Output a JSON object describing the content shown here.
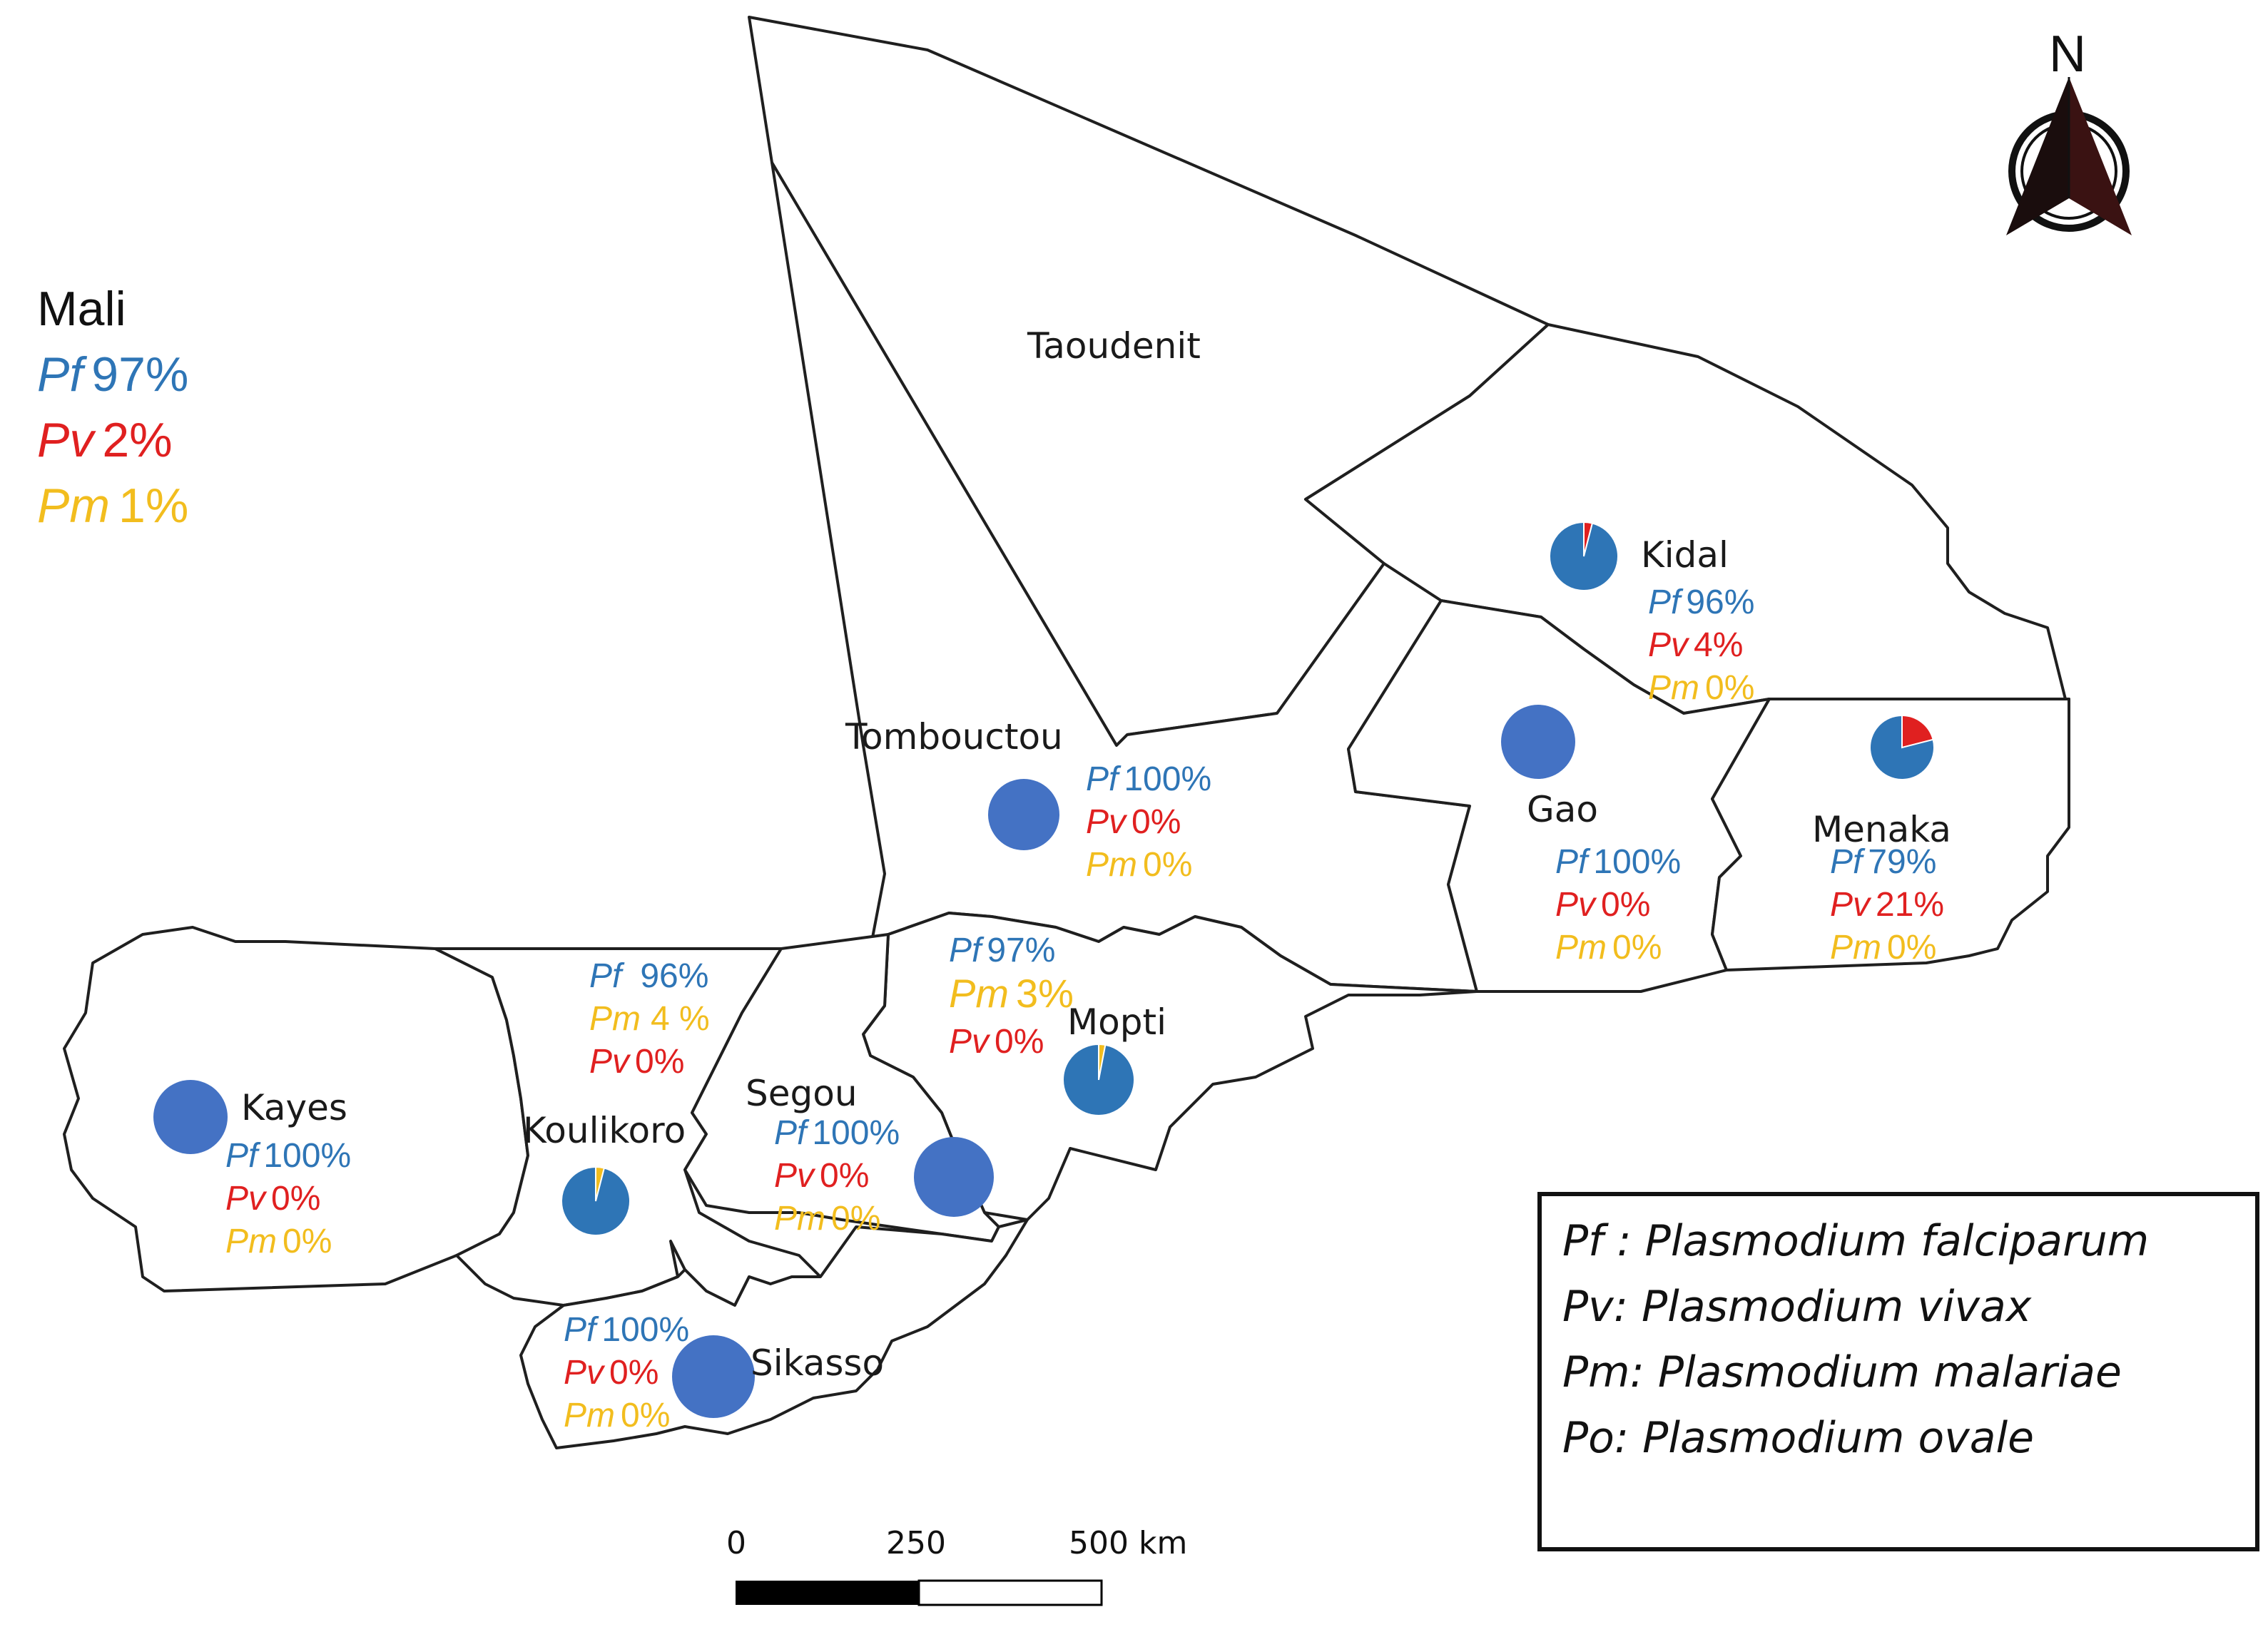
{
  "country": {
    "name": "Mali",
    "rows": [
      {
        "species": "Pf",
        "value": "97%",
        "color": "#2e75b6"
      },
      {
        "species": "Pv",
        "value": "2%",
        "color": "#e02020"
      },
      {
        "species": "Pm",
        "value": "1%",
        "color": "#f2bd1e"
      }
    ]
  },
  "regions": [
    {
      "name": "Taoudenit",
      "stats": []
    },
    {
      "name": "Kidal",
      "pie": {
        "Pf": 96,
        "Pv": 4,
        "Pm": 0
      },
      "stats": [
        {
          "species": "Pf",
          "value": "96%"
        },
        {
          "species": "Pv",
          "value": "4%"
        },
        {
          "species": "Pm",
          "value": "0%"
        }
      ]
    },
    {
      "name": "Tombouctou",
      "pie": {
        "Pf": 100,
        "Pv": 0,
        "Pm": 0
      },
      "stats": [
        {
          "species": "Pf",
          "value": "100%"
        },
        {
          "species": "Pv",
          "value": "0%"
        },
        {
          "species": "Pm",
          "value": "0%"
        }
      ]
    },
    {
      "name": "Gao",
      "pie": {
        "Pf": 100,
        "Pv": 0,
        "Pm": 0
      },
      "stats": [
        {
          "species": "Pf",
          "value": "100%"
        },
        {
          "species": "Pv",
          "value": "0%"
        },
        {
          "species": "Pm",
          "value": "0%"
        }
      ]
    },
    {
      "name": "Menaka",
      "pie": {
        "Pf": 79,
        "Pv": 21,
        "Pm": 0
      },
      "stats": [
        {
          "species": "Pf",
          "value": "79%"
        },
        {
          "species": "Pv",
          "value": "21%"
        },
        {
          "species": "Pm",
          "value": "0%"
        }
      ]
    },
    {
      "name": "Mopti",
      "pie": {
        "Pf": 97,
        "Pv": 0,
        "Pm": 3
      },
      "stats": [
        {
          "species": "Pf",
          "value": "97%"
        },
        {
          "species": "Pm",
          "value": "3%"
        },
        {
          "species": "Pv",
          "value": "0%"
        }
      ]
    },
    {
      "name": "Koulikoro",
      "pie": {
        "Pf": 96,
        "Pv": 0,
        "Pm": 4
      },
      "stats": [
        {
          "species": "Pf",
          "value": "96%"
        },
        {
          "species": "Pm",
          "value": "4 %"
        },
        {
          "species": "Pv",
          "value": "0%"
        }
      ]
    },
    {
      "name": "Kayes",
      "pie": {
        "Pf": 100,
        "Pv": 0,
        "Pm": 0
      },
      "stats": [
        {
          "species": "Pf",
          "value": "100%"
        },
        {
          "species": "Pv",
          "value": "0%"
        },
        {
          "species": "Pm",
          "value": "0%"
        }
      ]
    },
    {
      "name": "Segou",
      "pie": {
        "Pf": 100,
        "Pv": 0,
        "Pm": 0
      },
      "stats": [
        {
          "species": "Pf",
          "value": "100%"
        },
        {
          "species": "Pv",
          "value": "0%"
        },
        {
          "species": "Pm",
          "value": "0%"
        }
      ]
    },
    {
      "name": "Sikasso",
      "pie": {
        "Pf": 100,
        "Pv": 0,
        "Pm": 0
      },
      "stats": [
        {
          "species": "Pf",
          "value": "100%"
        },
        {
          "species": "Pv",
          "value": "0%"
        },
        {
          "species": "Pm",
          "value": "0%"
        }
      ]
    }
  ],
  "legend": [
    "Pf : Plasmodium falciparum",
    "Pv: Plasmodium vivax",
    "Pm: Plasmodium malariae",
    "Po: Plasmodium ovale"
  ],
  "scale_bar": {
    "labels": [
      "0",
      "250",
      "500 km"
    ]
  },
  "north_arrow": {
    "label": "N",
    "icon": "north-arrow-icon"
  },
  "colors": {
    "Pf": "#2e75b6",
    "Pv": "#e02020",
    "Pm": "#f2bd1e",
    "solid_pf": "#4472c4"
  }
}
